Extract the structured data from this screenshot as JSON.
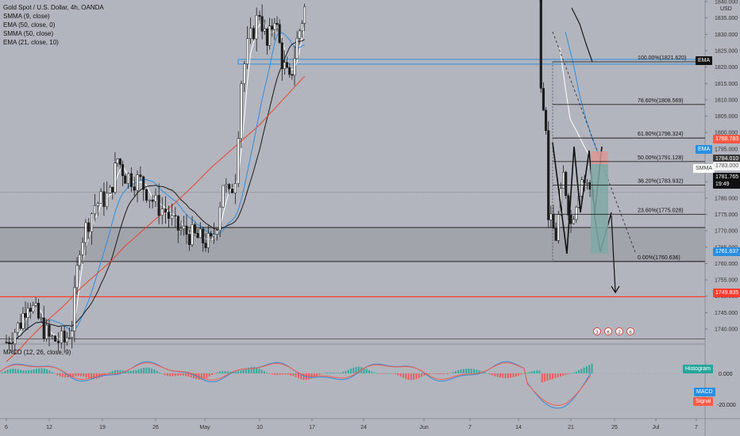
{
  "legend": {
    "title": "Gold Spot / U.S. Dollar, 4h, OANDA",
    "indicators": [
      "SMMA (9, close)",
      "EMA (50, close, 0)",
      "SMMA (50, close)",
      "EMA (21, close, 10)"
    ]
  },
  "macd_legend": "MACD (12, 26, close, 9)",
  "currency": "USD",
  "price_tags": {
    "ema_label": "EMA",
    "smma_label": "SMMA",
    "p1788": "1788.783",
    "p1784": "1784.010",
    "p1783": "1783.000",
    "current": "1781.765",
    "countdown": "19:49",
    "p1761": "1761.637",
    "red_line": "1749.835"
  },
  "macd_tags": {
    "histogram": "Histogram",
    "macd": "MACD",
    "signal": "Signal",
    "zero": "0.000",
    "neg20": "-20.000"
  },
  "colors": {
    "background": "#b3b5be",
    "up_candle": "#f2f2f2",
    "down_candle": "#1c1c1c",
    "smma9": "#ffffff",
    "ema50": "#2a8fe0",
    "smma50": "#1a1a1a",
    "ema21": "#e8452c",
    "fib_line": "#222222",
    "zone": "#9ea0a8",
    "red_level": "#ff3b30",
    "blue_level": "#2a8fe0"
  },
  "chart_data": [
    {
      "type": "candlestick",
      "title": "Gold Spot / U.S. Dollar, 4h, OANDA",
      "ylabel": "USD",
      "ylim": [
        1734,
        1845
      ],
      "yticks": [
        1740,
        1745,
        1750,
        1755,
        1760,
        1765,
        1770,
        1775,
        1780,
        1785,
        1790,
        1795,
        1800,
        1805,
        1810,
        1815,
        1820,
        1825,
        1830,
        1835,
        1840
      ],
      "xticks": [
        "6",
        "12",
        "19",
        "26",
        "May",
        "10",
        "17",
        "24",
        "Jun",
        "7",
        "14",
        "21",
        "25",
        "Jul",
        "7"
      ],
      "close_path": [
        {
          "date": "Apr 6",
          "price": 1736
        },
        {
          "date": "Apr 8",
          "price": 1742
        },
        {
          "date": "Apr 9",
          "price": 1749
        },
        {
          "date": "Apr 12",
          "price": 1737
        },
        {
          "date": "Apr 14",
          "price": 1736
        },
        {
          "date": "Apr 15",
          "price": 1741
        },
        {
          "date": "Apr 16",
          "price": 1766
        },
        {
          "date": "Apr 18",
          "price": 1778
        },
        {
          "date": "Apr 20",
          "price": 1781
        },
        {
          "date": "Apr 21",
          "price": 1792
        },
        {
          "date": "Apr 22",
          "price": 1787
        },
        {
          "date": "Apr 24",
          "price": 1785
        },
        {
          "date": "Apr 26",
          "price": 1778
        },
        {
          "date": "Apr 27",
          "price": 1776
        },
        {
          "date": "Apr 28",
          "price": 1771
        },
        {
          "date": "Apr 30",
          "price": 1768
        },
        {
          "date": "May 2",
          "price": 1766
        },
        {
          "date": "May 3",
          "price": 1773
        },
        {
          "date": "May 4",
          "price": 1785
        },
        {
          "date": "May 5",
          "price": 1780
        },
        {
          "date": "May 6",
          "price": 1787
        },
        {
          "date": "May 7",
          "price": 1816
        },
        {
          "date": "May 8",
          "price": 1826
        },
        {
          "date": "May 10",
          "price": 1837
        },
        {
          "date": "May 11",
          "price": 1826
        },
        {
          "date": "May 12",
          "price": 1836
        },
        {
          "date": "May 13",
          "price": 1822
        },
        {
          "date": "May 14",
          "price": 1815
        },
        {
          "date": "May 15",
          "price": 1828
        },
        {
          "date": "May 16",
          "price": 1838
        }
      ],
      "close_path_2": [
        {
          "date": "Jun 17",
          "price": 1840
        },
        {
          "date": "Jun 17",
          "price": 1816
        },
        {
          "date": "Jun 18",
          "price": 1796
        },
        {
          "date": "Jun 18",
          "price": 1775
        },
        {
          "date": "Jun 19",
          "price": 1768
        },
        {
          "date": "Jun 20",
          "price": 1787
        },
        {
          "date": "Jun 21",
          "price": 1772
        },
        {
          "date": "Jun 22",
          "price": 1786
        },
        {
          "date": "Jun 23",
          "price": 1781.765
        }
      ],
      "horizontal_levels": [
        {
          "label": "1821.620",
          "price": 1821.62,
          "style": "blue-band"
        },
        {
          "label": "1749.835",
          "price": 1749.835,
          "style": "red"
        },
        {
          "label": "zone_top",
          "price": 1771,
          "style": "gray"
        },
        {
          "label": "zone_bottom",
          "price": 1760.6,
          "style": "gray"
        },
        {
          "label": "chart_bottom",
          "price": 1737,
          "style": "gray"
        },
        {
          "label": "current",
          "price": 1781.765,
          "style": "gray-thin"
        }
      ],
      "fibonacci": [
        {
          "label": "100.00%(1821.620)",
          "level": 100.0,
          "price": 1821.62
        },
        {
          "label": "78.60%(1808.569)",
          "level": 78.6,
          "price": 1808.569
        },
        {
          "label": "61.80%(1798.324)",
          "level": 61.8,
          "price": 1798.324
        },
        {
          "label": "50.00%(1791.128)",
          "level": 50.0,
          "price": 1791.128
        },
        {
          "label": "38.20%(1783.932)",
          "level": 38.2,
          "price": 1783.932
        },
        {
          "label": "23.60%(1775.028)",
          "level": 23.6,
          "price": 1775.028
        },
        {
          "label": "0.00%(1760.636)",
          "level": 0.0,
          "price": 1760.636
        }
      ],
      "event_badges": [
        "3",
        "6",
        "2",
        "6"
      ]
    },
    {
      "type": "macd",
      "title": "MACD (12, 26, close, 9)",
      "ylim": [
        -28,
        6
      ],
      "yticks": [
        0,
        -20
      ],
      "series": [
        {
          "name": "Histogram"
        },
        {
          "name": "MACD"
        },
        {
          "name": "Signal"
        }
      ],
      "macd_path": [
        {
          "date": "Jun 17",
          "value": -3
        },
        {
          "date": "Jun 19",
          "value": -15
        },
        {
          "date": "Jun 20",
          "value": -22
        },
        {
          "date": "Jun 21",
          "value": -21
        },
        {
          "date": "Jun 23",
          "value": -12
        }
      ]
    }
  ]
}
